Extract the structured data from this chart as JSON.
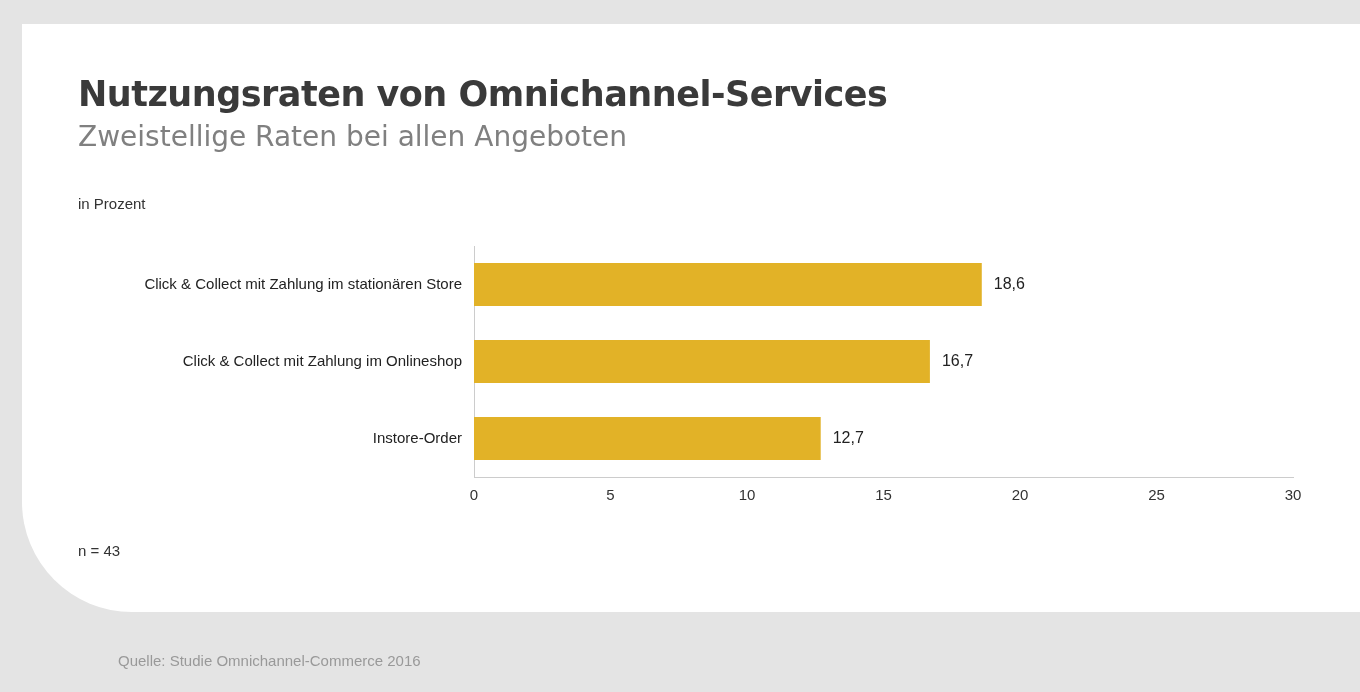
{
  "chart_data": {
    "type": "bar",
    "orientation": "horizontal",
    "title": "Nutzungsraten von Omnichannel-Services",
    "subtitle": "Zweistellige Raten bei allen Angeboten",
    "categories": [
      "Click & Collect mit Zahlung im stationären Store",
      "Click & Collect mit Zahlung im Onlineshop",
      "Instore-Order"
    ],
    "values": [
      18.6,
      16.7,
      12.7
    ],
    "value_labels": [
      "18,6",
      "16,7",
      "12,7"
    ],
    "color": "#e2b227",
    "xlim": [
      0,
      30
    ],
    "xticks": [
      0,
      5,
      10,
      15,
      20,
      25,
      30
    ],
    "grid": false,
    "legend": false,
    "annotations": [
      "in Prozent",
      "n = 43",
      "Quelle: Studie Omnichannel-Commerce 2016"
    ]
  }
}
